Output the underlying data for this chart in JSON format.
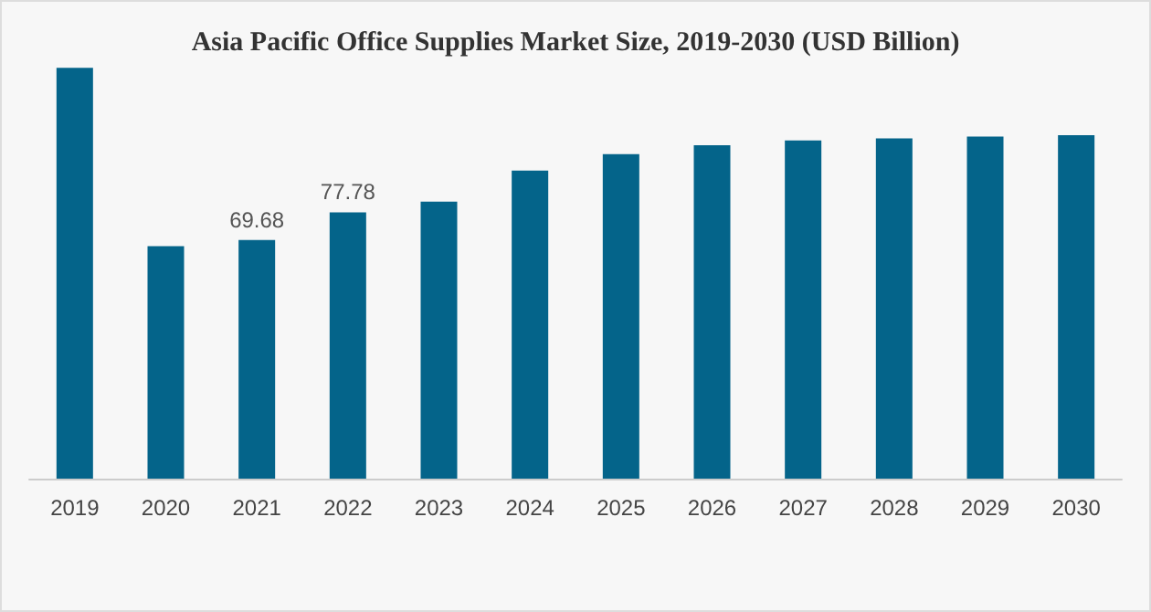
{
  "chart_data": {
    "type": "bar",
    "title": "Asia Pacific Office Supplies Market Size, 2019-2030 (USD Billion)",
    "categories": [
      "2019",
      "2020",
      "2021",
      "2022",
      "2023",
      "2024",
      "2025",
      "2026",
      "2027",
      "2028",
      "2029",
      "2030"
    ],
    "values": [
      120.0,
      67.9,
      69.68,
      77.78,
      80.9,
      90.0,
      94.8,
      97.4,
      98.8,
      99.4,
      99.9,
      100.3
    ],
    "value_labels": [
      null,
      null,
      "69.68",
      "77.78",
      null,
      null,
      null,
      null,
      null,
      null,
      null,
      null
    ],
    "color": "#04648a"
  }
}
